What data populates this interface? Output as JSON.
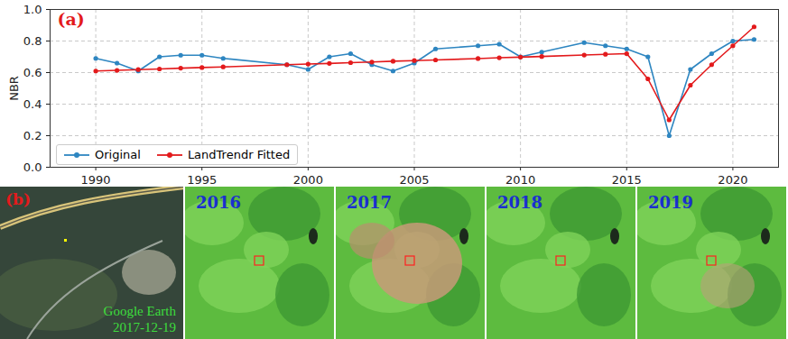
{
  "chart_data": {
    "type": "line",
    "title": "(a)",
    "y_label": "NBR",
    "x": [
      1990,
      1991,
      1992,
      1993,
      1994,
      1995,
      1996,
      1999,
      2000,
      2001,
      2002,
      2003,
      2004,
      2005,
      2006,
      2008,
      2009,
      2010,
      2011,
      2013,
      2014,
      2015,
      2016,
      2017,
      2018,
      2019,
      2020,
      2021
    ],
    "series": [
      {
        "name": "Original",
        "color": "#2e86c1",
        "marker": "o",
        "line_style": "solid",
        "values": [
          0.69,
          0.66,
          0.61,
          0.7,
          0.71,
          0.71,
          0.69,
          0.65,
          0.62,
          0.7,
          0.72,
          0.65,
          0.61,
          0.66,
          0.75,
          0.77,
          0.78,
          0.7,
          0.73,
          0.79,
          0.77,
          0.75,
          0.7,
          0.2,
          0.62,
          0.72,
          0.8,
          0.81
        ]
      },
      {
        "name": "LandTrendr Fitted",
        "color": "#e31a1c",
        "marker": "o",
        "line_style": "solid",
        "values": [
          0.61,
          0.614,
          0.619,
          0.623,
          0.628,
          0.632,
          0.636,
          0.65,
          0.654,
          0.658,
          0.663,
          0.667,
          0.672,
          0.676,
          0.68,
          0.689,
          0.694,
          0.698,
          0.702,
          0.711,
          0.716,
          0.72,
          0.56,
          0.3,
          0.52,
          0.65,
          0.77,
          0.89
        ]
      }
    ],
    "xlim": [
      1987.85,
      2022.15
    ],
    "xticks": [
      1990,
      1995,
      2000,
      2005,
      2010,
      2015,
      2020
    ],
    "ylim": [
      0,
      1
    ],
    "yticks": [
      {
        "value": 0,
        "label": "0.0"
      },
      {
        "value": 0.2,
        "label": "0.2"
      },
      {
        "value": 0.4,
        "label": "0.4"
      },
      {
        "value": 0.6,
        "label": "0.6"
      },
      {
        "value": 0.8,
        "label": "0.8"
      },
      {
        "value": 1,
        "label": "1.0"
      }
    ],
    "grid": true,
    "legend": "lower left"
  },
  "image_panels": {
    "label": "(b)",
    "panels": [
      {
        "caption_lines": [
          "Google Earth",
          "2017-12-19"
        ]
      },
      {
        "caption_lines": [
          "2016"
        ]
      },
      {
        "caption_lines": [
          "2017"
        ]
      },
      {
        "caption_lines": [
          "2018"
        ]
      },
      {
        "caption_lines": [
          "2019"
        ]
      }
    ]
  }
}
